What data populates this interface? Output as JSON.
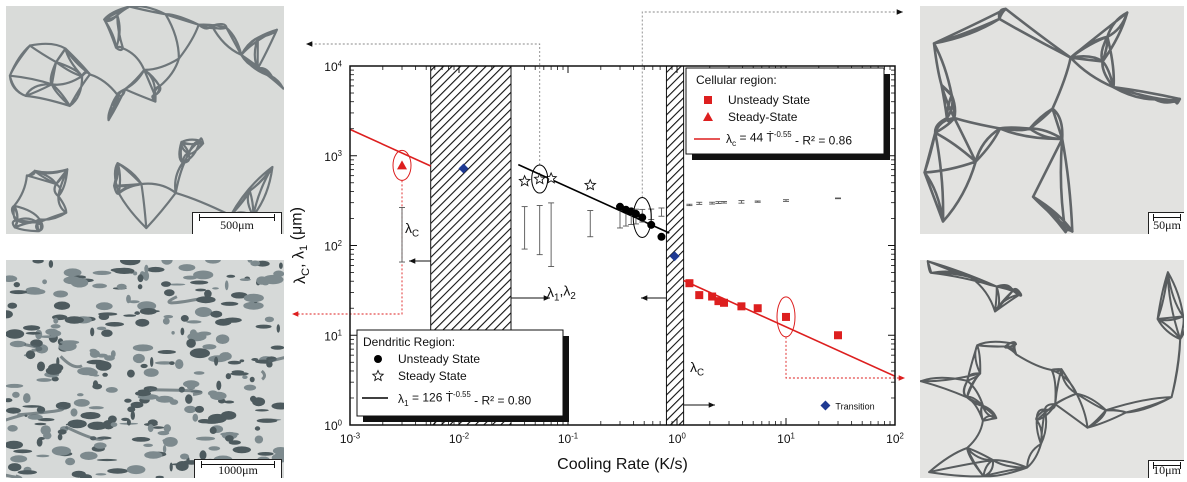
{
  "scale_bars": {
    "top_left": "500μm",
    "bottom_left": "1000μm",
    "top_right": "50μm",
    "bottom_right": "10μm"
  },
  "chart_data": {
    "type": "scatter",
    "xlabel": "Cooling Rate (K/s)",
    "ylabel": "λC, λ1 (μm)",
    "xscale": "log",
    "yscale": "log",
    "xlim": [
      0.001,
      100
    ],
    "ylim": [
      1,
      10000
    ],
    "x_ticks": [
      {
        "value": 0.001,
        "base": "10",
        "exp": "-3"
      },
      {
        "value": 0.01,
        "base": "10",
        "exp": "-2"
      },
      {
        "value": 0.1,
        "base": "10",
        "exp": "-1"
      },
      {
        "value": 1,
        "base": "10",
        "exp": "0"
      },
      {
        "value": 10,
        "base": "10",
        "exp": "1"
      },
      {
        "value": 100,
        "base": "10",
        "exp": "2"
      }
    ],
    "y_ticks": [
      {
        "value": 1,
        "base": "10",
        "exp": "0"
      },
      {
        "value": 10,
        "base": "10",
        "exp": "1"
      },
      {
        "value": 100,
        "base": "10",
        "exp": "2"
      },
      {
        "value": 1000,
        "base": "10",
        "exp": "3"
      },
      {
        "value": 10000,
        "base": "10",
        "exp": "4"
      }
    ],
    "hatched_regions": [
      [
        0.0055,
        0.03
      ],
      [
        0.8,
        1.15
      ]
    ],
    "series": [
      {
        "name": "Unsteady State",
        "region": "Dendritic Region",
        "marker": "circle",
        "color": "#000000",
        "points": [
          [
            0.3,
            270
          ],
          [
            0.34,
            250
          ],
          [
            0.38,
            240
          ],
          [
            0.42,
            225
          ],
          [
            0.48,
            205
          ],
          [
            0.58,
            170
          ],
          [
            0.72,
            125
          ]
        ],
        "errors": [
          50,
          45,
          40,
          40,
          35,
          30,
          25
        ]
      },
      {
        "name": "Steady State",
        "region": "Dendritic Region",
        "marker": "star",
        "color": "#000000",
        "points": [
          [
            0.04,
            520
          ],
          [
            0.055,
            550
          ],
          [
            0.07,
            560
          ],
          [
            0.16,
            470
          ]
        ],
        "errors": [
          90,
          100,
          120,
          60
        ]
      },
      {
        "name": "Unsteady State",
        "region": "Cellular region",
        "marker": "square",
        "color": "#dd1f1f",
        "points": [
          [
            1.3,
            38
          ],
          [
            1.6,
            28
          ],
          [
            2.1,
            27
          ],
          [
            2.4,
            24
          ],
          [
            2.7,
            23
          ],
          [
            3.9,
            21
          ],
          [
            5.5,
            20
          ],
          [
            10,
            16
          ],
          [
            30,
            10
          ]
        ],
        "errors": [
          5,
          8,
          7,
          7,
          6,
          10,
          5,
          7,
          3
        ]
      },
      {
        "name": "Steady-State",
        "region": "Cellular region",
        "marker": "triangle",
        "color": "#dd1f1f",
        "points": [
          [
            0.003,
            780
          ]
        ],
        "errors": [
          100
        ]
      },
      {
        "name": "Transition",
        "marker": "diamond",
        "color": "#1f3a93",
        "points": [
          [
            0.011,
            720
          ],
          [
            0.95,
            76
          ]
        ]
      }
    ],
    "fits": [
      {
        "coef": 126,
        "exp": -0.55,
        "range": [
          0.035,
          0.85
        ],
        "color": "#000000",
        "label_prefix": "λ",
        "label_sub": "1",
        "label_rest": " = 126 Ṫ",
        "label_exp": "-0.55",
        "label_r2": " - R² = 0.80"
      },
      {
        "coef": 44,
        "exp": -0.55,
        "range": [
          0.001,
          0.0055
        ],
        "color": "#dd1f1f",
        "label_prefix": "λ",
        "label_sub": "c",
        "label_rest": " = 44 Ṫ",
        "label_exp": "-0.55",
        "label_r2": " - R² = 0.86"
      },
      {
        "coef": 44,
        "exp": -0.55,
        "range": [
          1.15,
          100
        ],
        "color": "#dd1f1f"
      }
    ],
    "region_labels": {
      "lambda_c_left": {
        "main": "λ",
        "sub": "C"
      },
      "lambda_12": {
        "main": "λ",
        "sub1": "1",
        "sep": ",λ",
        "sub2": "2"
      },
      "lambda_c_right": {
        "main": "λ",
        "sub": "C"
      }
    },
    "legend_dendritic": {
      "title": "Dendritic Region:",
      "unsteady": "Unsteady State",
      "steady": "Steady State"
    },
    "legend_cellular": {
      "title": "Cellular region:",
      "unsteady": "Unsteady State",
      "steady": "Steady-State"
    },
    "transition_label": "Transition",
    "colors": {
      "red": "#dd1f1f",
      "blue": "#1f3a93",
      "black": "#000000"
    }
  }
}
